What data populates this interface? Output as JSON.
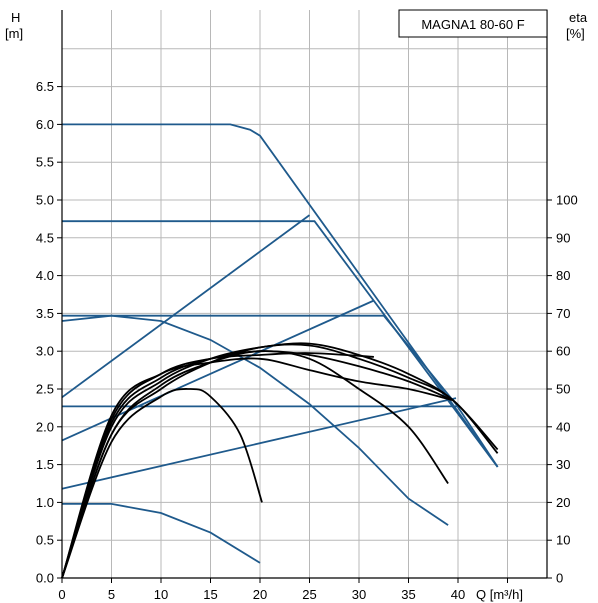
{
  "chart_data": {
    "type": "line",
    "title": "MAGNA1 80-60 F",
    "y_left": {
      "label_line1": "H",
      "label_line2": "[m]",
      "ylim": [
        0,
        6.5
      ],
      "ticks": [
        0.0,
        0.5,
        1.0,
        1.5,
        2.0,
        2.5,
        3.0,
        3.5,
        4.0,
        4.5,
        5.0,
        5.5,
        6.0,
        6.5
      ]
    },
    "y_right": {
      "label_line1": "eta",
      "label_line2": "[%]",
      "ylim": [
        0,
        100
      ],
      "ticks": [
        0,
        10,
        20,
        30,
        40,
        50,
        60,
        70,
        80,
        90,
        100
      ]
    },
    "x": {
      "label": "Q [m³/h]",
      "ticks": [
        0,
        5,
        10,
        15,
        20,
        25,
        30,
        35,
        40
      ]
    },
    "grid": true,
    "colors": {
      "head_curves": "#1f5a8c",
      "efficiency_curves": "#000000",
      "grid": "#b8b8b8"
    },
    "head_curves": [
      {
        "points": [
          [
            0,
            6.0
          ],
          [
            17,
            6.0
          ],
          [
            19,
            5.93
          ],
          [
            20,
            5.85
          ],
          [
            44,
            1.47
          ]
        ]
      },
      {
        "points": [
          [
            0,
            4.72
          ],
          [
            25.5,
            4.72
          ],
          [
            44,
            1.47
          ]
        ]
      },
      {
        "points": [
          [
            0,
            3.47
          ],
          [
            32.5,
            3.47
          ],
          [
            39.8,
            2.3
          ],
          [
            44,
            1.47
          ]
        ]
      },
      {
        "points": [
          [
            0,
            2.27
          ],
          [
            40,
            2.27
          ]
        ]
      },
      {
        "points": [
          [
            0,
            2.39
          ],
          [
            25,
            4.8
          ]
        ]
      },
      {
        "points": [
          [
            0,
            1.82
          ],
          [
            31.5,
            3.67
          ]
        ]
      },
      {
        "points": [
          [
            0,
            1.18
          ],
          [
            39.8,
            2.38
          ]
        ]
      },
      {
        "points": [
          [
            0,
            3.4
          ],
          [
            5,
            3.47
          ],
          [
            10,
            3.4
          ],
          [
            15,
            3.15
          ],
          [
            20,
            2.78
          ],
          [
            25,
            2.3
          ],
          [
            30,
            1.72
          ],
          [
            35,
            1.05
          ],
          [
            39,
            0.7
          ]
        ]
      },
      {
        "points": [
          [
            0,
            0.98
          ],
          [
            5,
            0.98
          ],
          [
            10,
            0.86
          ],
          [
            15,
            0.6
          ],
          [
            20,
            0.2
          ]
        ]
      }
    ],
    "efficiency_curves": [
      {
        "points": [
          [
            0,
            0
          ],
          [
            5,
            36
          ],
          [
            10,
            48
          ],
          [
            13,
            50
          ],
          [
            15,
            48
          ],
          [
            18,
            38
          ],
          [
            20.2,
            20
          ]
        ]
      },
      {
        "points": [
          [
            0,
            0
          ],
          [
            5,
            38
          ],
          [
            10,
            51
          ],
          [
            15,
            57
          ],
          [
            20,
            60
          ],
          [
            25,
            58
          ],
          [
            30,
            50
          ],
          [
            35,
            40
          ],
          [
            39,
            25
          ]
        ]
      },
      {
        "points": [
          [
            0,
            0
          ],
          [
            5,
            38
          ],
          [
            10,
            50
          ],
          [
            15,
            57
          ],
          [
            20,
            61
          ],
          [
            25,
            61.5
          ],
          [
            30,
            58
          ],
          [
            35,
            53
          ],
          [
            39.5,
            47
          ],
          [
            44,
            33
          ]
        ]
      },
      {
        "points": [
          [
            0,
            0
          ],
          [
            5,
            40
          ],
          [
            10,
            52
          ],
          [
            15,
            58
          ],
          [
            20,
            61
          ],
          [
            25,
            62
          ],
          [
            30,
            59
          ],
          [
            35,
            54
          ],
          [
            39.5,
            47
          ],
          [
            44,
            34
          ]
        ]
      },
      {
        "points": [
          [
            0,
            0
          ],
          [
            5,
            41
          ],
          [
            10,
            53
          ],
          [
            15,
            58
          ],
          [
            20,
            60
          ],
          [
            25,
            59
          ],
          [
            30,
            56
          ],
          [
            35,
            52
          ],
          [
            39.5,
            47
          ]
        ]
      },
      {
        "points": [
          [
            0,
            0
          ],
          [
            5,
            42
          ],
          [
            10,
            54
          ],
          [
            15,
            58
          ],
          [
            20,
            59
          ],
          [
            25,
            59.5
          ],
          [
            31.5,
            58.5
          ]
        ]
      },
      {
        "points": [
          [
            0,
            0
          ],
          [
            5,
            43
          ],
          [
            10,
            54
          ],
          [
            15,
            57
          ],
          [
            20,
            58
          ],
          [
            25,
            55
          ],
          [
            30,
            52
          ],
          [
            35,
            50
          ],
          [
            39.5,
            47
          ]
        ]
      }
    ]
  }
}
